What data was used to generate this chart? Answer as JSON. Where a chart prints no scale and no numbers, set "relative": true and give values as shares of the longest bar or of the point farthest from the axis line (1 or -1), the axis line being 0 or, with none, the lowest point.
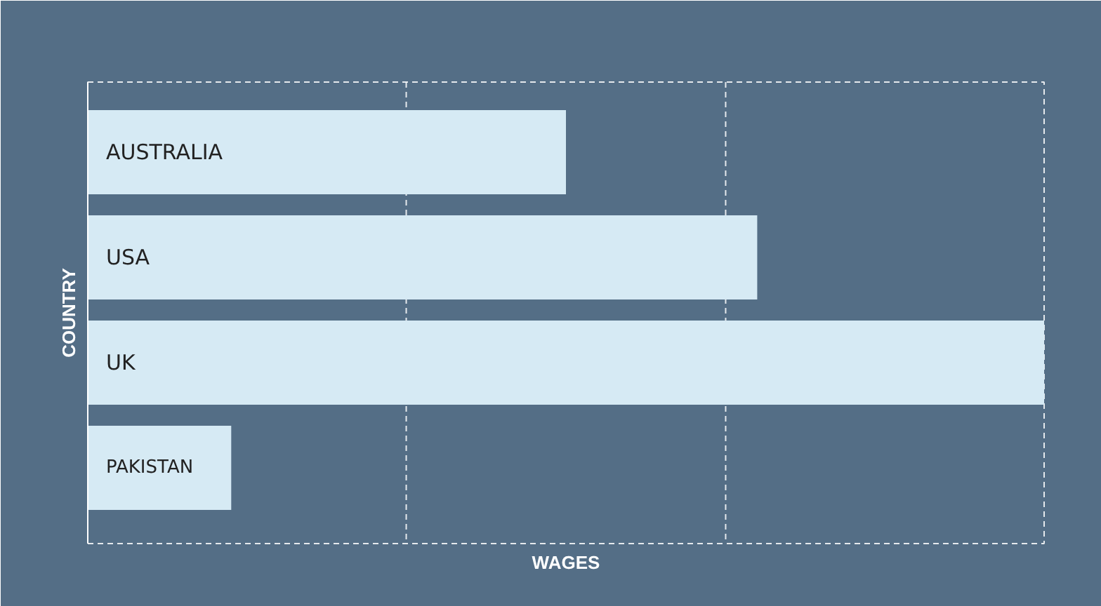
{
  "chart_data": {
    "type": "bar",
    "orientation": "horizontal",
    "relative": true,
    "categories": [
      "AUSTRALIA",
      "USA",
      "UK",
      "PAKISTAN"
    ],
    "values": [
      0.5,
      0.7,
      1,
      0.15
    ],
    "color": "#d6eaf4",
    "xlabel": "WAGES",
    "ylabel": "COUNTRY",
    "ref_lines": [
      {
        "axis": "x",
        "value": 0.333,
        "color": "#ffffff",
        "line_style": "dashed"
      },
      {
        "axis": "x",
        "value": 0.667,
        "color": "#ffffff",
        "line_style": "dashed"
      }
    ]
  }
}
